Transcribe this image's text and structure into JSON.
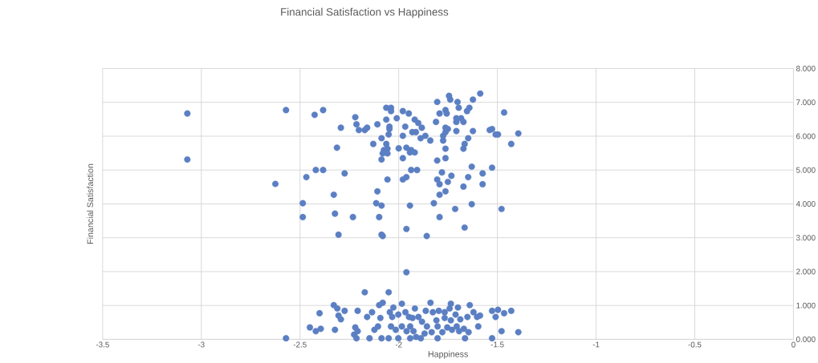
{
  "chart_data": {
    "type": "scatter",
    "title": "Financial Satisfaction vs Happiness",
    "xlabel": "Happiness",
    "ylabel": "Financial Satisfaction",
    "xlim": [
      -3.5,
      0
    ],
    "xticks": [
      -3.5,
      -3,
      -2.5,
      -2,
      -1.5,
      -1,
      -0.5,
      0
    ],
    "ylim": [
      0,
      8
    ],
    "yticks": [
      {
        "value": 0,
        "label": "0.000"
      },
      {
        "value": 1,
        "label": "1.000"
      },
      {
        "value": 2,
        "label": "2.000"
      },
      {
        "value": 3,
        "label": "3.000"
      },
      {
        "value": 4,
        "label": "4.000"
      },
      {
        "value": 5,
        "label": "5.000"
      },
      {
        "value": 6,
        "label": "6.000"
      },
      {
        "value": 7,
        "label": "7.000"
      },
      {
        "value": 8,
        "label": "8.000"
      }
    ],
    "grid": true,
    "marker": "circle",
    "color": "#5b7fc3",
    "x": [
      -2.571,
      -2.426,
      -2.383,
      -2.22,
      -2.293,
      -2.214,
      -2.202,
      -2.172,
      -2.16,
      -2.108,
      -2.313,
      -2.129,
      -2.063,
      -2.039,
      -2.039,
      -2.063,
      -2.01,
      -1.979,
      -1.949,
      -2.047,
      -2.047,
      -1.919,
      -1.901,
      -1.883,
      -1.967,
      -2.051,
      -2.087,
      -1.979,
      -1.931,
      -1.913,
      -1.889,
      -1.865,
      -1.84,
      -2.063,
      -2.057,
      -2.075,
      -2.081,
      -2.057,
      -2.087,
      -2.0,
      -1.961,
      -1.937,
      -1.943,
      -1.919,
      -1.979,
      -1.805,
      -1.745,
      -1.739,
      -1.702,
      -1.587,
      -1.624,
      -1.642,
      -1.654,
      -1.696,
      -1.763,
      -1.757,
      -1.793,
      -1.811,
      -1.708,
      -1.684,
      -1.708,
      -1.672,
      -1.763,
      -1.751,
      -1.763,
      -1.708,
      -1.624,
      -1.775,
      -1.775,
      -1.648,
      -1.666,
      -1.672,
      -1.763,
      -1.763,
      -1.805,
      -1.466,
      -1.539,
      -1.527,
      -1.509,
      -1.497,
      -1.394,
      -1.43,
      -2.42,
      -2.383,
      -2.468,
      -2.274,
      -2.329,
      -2.486,
      -2.486,
      -2.323,
      -2.232,
      -2.305,
      -2.108,
      -2.114,
      -2.087,
      -2.099,
      -2.087,
      -2.081,
      -2.057,
      -1.979,
      -1.961,
      -1.937,
      -1.907,
      -1.943,
      -1.961,
      -1.858,
      -1.822,
      -1.805,
      -1.793,
      -1.781,
      -1.751,
      -1.733,
      -1.793,
      -1.763,
      -1.793,
      -1.714,
      -1.672,
      -1.648,
      -1.63,
      -1.575,
      -1.575,
      -1.527,
      -1.63,
      -1.666,
      -1.479,
      -1.961,
      -2.571,
      -2.45,
      -2.42,
      -2.395,
      -2.401,
      -2.323,
      -2.329,
      -2.311,
      -2.305,
      -2.293,
      -2.274,
      -2.226,
      -2.22,
      -2.208,
      -2.214,
      -2.208,
      -2.172,
      -2.16,
      -2.148,
      -2.135,
      -2.123,
      -2.105,
      -2.099,
      -2.093,
      -2.087,
      -2.081,
      -2.051,
      -2.051,
      -2.045,
      -2.039,
      -2.033,
      -2.027,
      -2.015,
      -2.002,
      -2.002,
      -1.984,
      -1.984,
      -1.966,
      -1.96,
      -1.948,
      -1.942,
      -1.942,
      -1.93,
      -1.925,
      -1.918,
      -1.912,
      -1.9,
      -1.888,
      -1.882,
      -1.869,
      -1.863,
      -1.857,
      -1.839,
      -1.833,
      -1.827,
      -1.809,
      -1.803,
      -1.803,
      -1.797,
      -1.779,
      -1.767,
      -1.767,
      -1.754,
      -1.742,
      -1.736,
      -1.736,
      -1.73,
      -1.712,
      -1.706,
      -1.7,
      -1.694,
      -1.688,
      -1.67,
      -1.664,
      -1.652,
      -1.646,
      -1.64,
      -1.621,
      -1.603,
      -1.597,
      -1.588,
      -1.527,
      -1.527,
      -1.509,
      -1.497,
      -1.479,
      -1.466,
      -1.43,
      -1.394,
      -3.071,
      -3.071,
      -2.625
    ],
    "values": [
      6.77,
      6.63,
      6.77,
      6.56,
      6.25,
      6.35,
      6.18,
      6.18,
      6.25,
      6.35,
      5.66,
      5.77,
      6.84,
      6.84,
      6.74,
      6.49,
      6.53,
      6.74,
      6.67,
      6.28,
      6.21,
      6.49,
      6.39,
      6.25,
      6.28,
      6.05,
      5.94,
      6.01,
      6.12,
      6.12,
      5.94,
      6.01,
      5.87,
      5.77,
      5.63,
      5.59,
      5.49,
      5.49,
      5.31,
      5.64,
      5.66,
      5.59,
      5.52,
      5.52,
      5.35,
      7.01,
      7.19,
      7.08,
      7.01,
      7.26,
      7.08,
      6.84,
      6.74,
      6.84,
      6.77,
      6.67,
      6.67,
      6.42,
      6.53,
      6.53,
      6.42,
      6.42,
      6.25,
      6.21,
      6.12,
      6.15,
      6.15,
      6.01,
      5.87,
      5.94,
      5.77,
      5.63,
      5.63,
      5.35,
      5.28,
      6.7,
      6.18,
      6.21,
      6.05,
      6.05,
      6.08,
      5.77,
      5.0,
      5.0,
      4.79,
      4.9,
      4.27,
      4.02,
      3.61,
      3.71,
      3.61,
      3.09,
      4.37,
      4.02,
      3.95,
      3.61,
      3.09,
      3.05,
      4.72,
      4.72,
      4.79,
      5.0,
      5.0,
      3.95,
      3.26,
      3.05,
      4.02,
      4.72,
      4.58,
      4.93,
      4.65,
      4.83,
      4.27,
      4.37,
      3.61,
      3.85,
      4.51,
      4.79,
      5.1,
      4.9,
      4.58,
      5.07,
      3.99,
      3.3,
      3.85,
      1.98,
      0.03,
      0.35,
      0.24,
      0.31,
      0.77,
      0.28,
      1.01,
      0.91,
      0.7,
      0.59,
      0.84,
      0.14,
      0.35,
      0.24,
      0.03,
      0.84,
      1.39,
      0.66,
      0.03,
      0.8,
      0.28,
      0.38,
      1.01,
      0.63,
      0.03,
      1.08,
      1.39,
      0.03,
      0.8,
      0.38,
      0.66,
      0.94,
      0.28,
      0.73,
      0.03,
      1.05,
      0.38,
      0.8,
      0.24,
      0.66,
      0.38,
      0.03,
      0.63,
      0.24,
      0.91,
      0.07,
      0.66,
      0.03,
      0.52,
      0.17,
      0.84,
      0.38,
      1.08,
      0.21,
      0.8,
      0.56,
      0.38,
      0.03,
      0.84,
      0.21,
      0.8,
      0.63,
      0.35,
      0.91,
      1.05,
      0.56,
      0.28,
      0.73,
      0.38,
      0.94,
      0.24,
      0.59,
      0.31,
      0.03,
      0.66,
      0.21,
      1.01,
      0.8,
      0.66,
      0.38,
      0.7,
      0.84,
      0.03,
      0.66,
      0.87,
      0.24,
      0.77,
      0.84,
      0.21,
      6.67,
      5.31,
      4.59
    ]
  }
}
